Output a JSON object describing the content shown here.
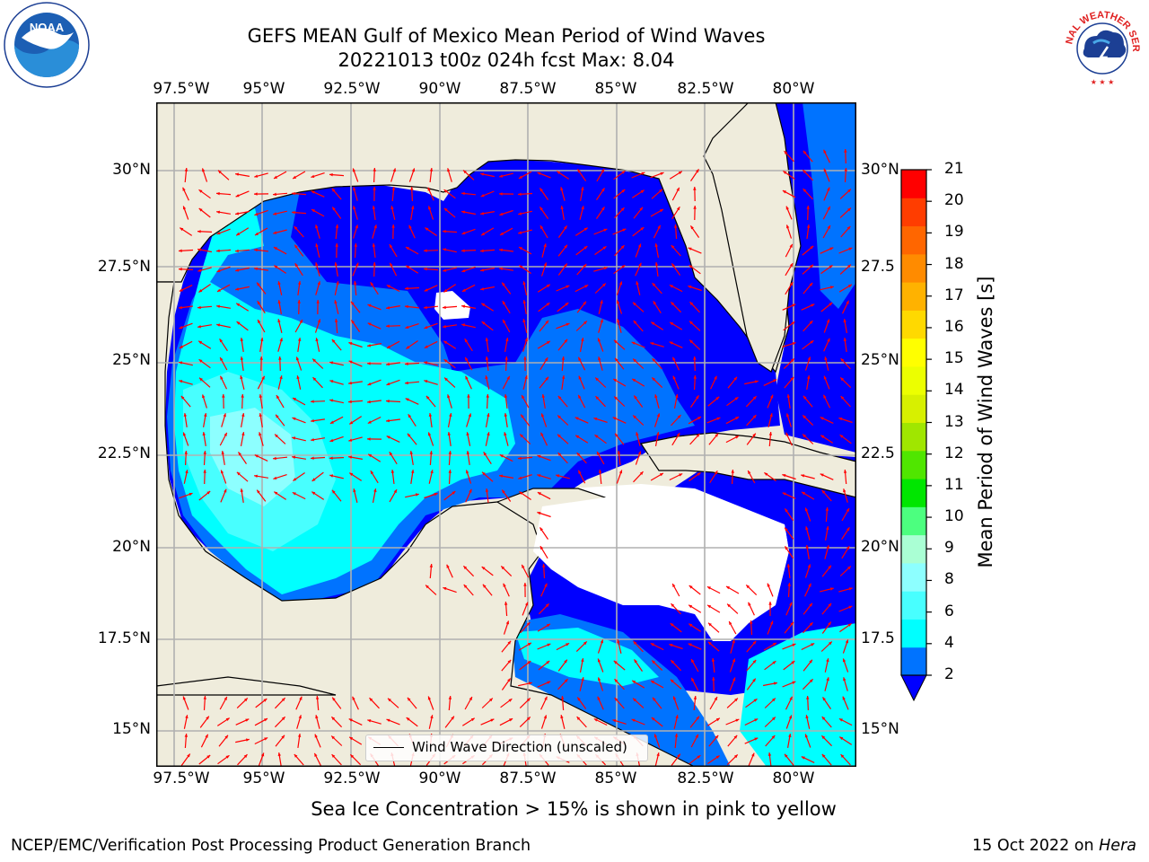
{
  "header": {
    "title_line1": "GEFS MEAN Gulf of Mexico Mean Period of Wind Waves",
    "title_line2": "20221013 t00z 024h fcst   Max: 8.04"
  },
  "logos": {
    "left": {
      "icon": "noaa-logo",
      "text": "NOAA"
    },
    "right": {
      "icon": "nws-logo",
      "text": "NATIONAL WEATHER SERVICE"
    }
  },
  "map": {
    "lon_labels": [
      "97.5°W",
      "95°W",
      "92.5°W",
      "90°W",
      "87.5°W",
      "85°W",
      "82.5°W",
      "80°W"
    ],
    "lat_labels_left": [
      "30°N",
      "27.5°N",
      "25°N",
      "22.5°N",
      "20°N",
      "17.5°N",
      "15°N"
    ],
    "lat_labels_right": [
      "30°N",
      "27.5",
      "25°N",
      "22.5",
      "20°N",
      "17.5",
      "15°N"
    ],
    "land_color": "#efecdc",
    "arrow_color": "#ff0000",
    "legend_label": "Wind Wave Direction (unscaled)"
  },
  "colorbar": {
    "title": "Mean Period of Wind Waves [s]",
    "tick_labels": [
      "21",
      "20",
      "19",
      "18",
      "17",
      "16",
      "15",
      "14",
      "13",
      "12",
      "11",
      "10",
      "9",
      "8",
      "6",
      "4",
      "2"
    ],
    "colors_bottom_to_top": [
      "#0073ff",
      "#00ffff",
      "#48ffff",
      "#8dffff",
      "#aaffd4",
      "#4cff7f",
      "#00e600",
      "#50e600",
      "#a0e600",
      "#d7f000",
      "#ecff00",
      "#ffff00",
      "#ffd900",
      "#ffb200",
      "#ff8b00",
      "#ff6600",
      "#ff3d00",
      "#ff0000"
    ],
    "under_color": "#0000ff"
  },
  "footer": {
    "ice_note": "Sea Ice Concentration > 15% is shown in pink to yellow",
    "left": "NCEP/EMC/Verification Post Processing Product Generation Branch",
    "date": "15 Oct 2022 on ",
    "host": "Hera"
  }
}
